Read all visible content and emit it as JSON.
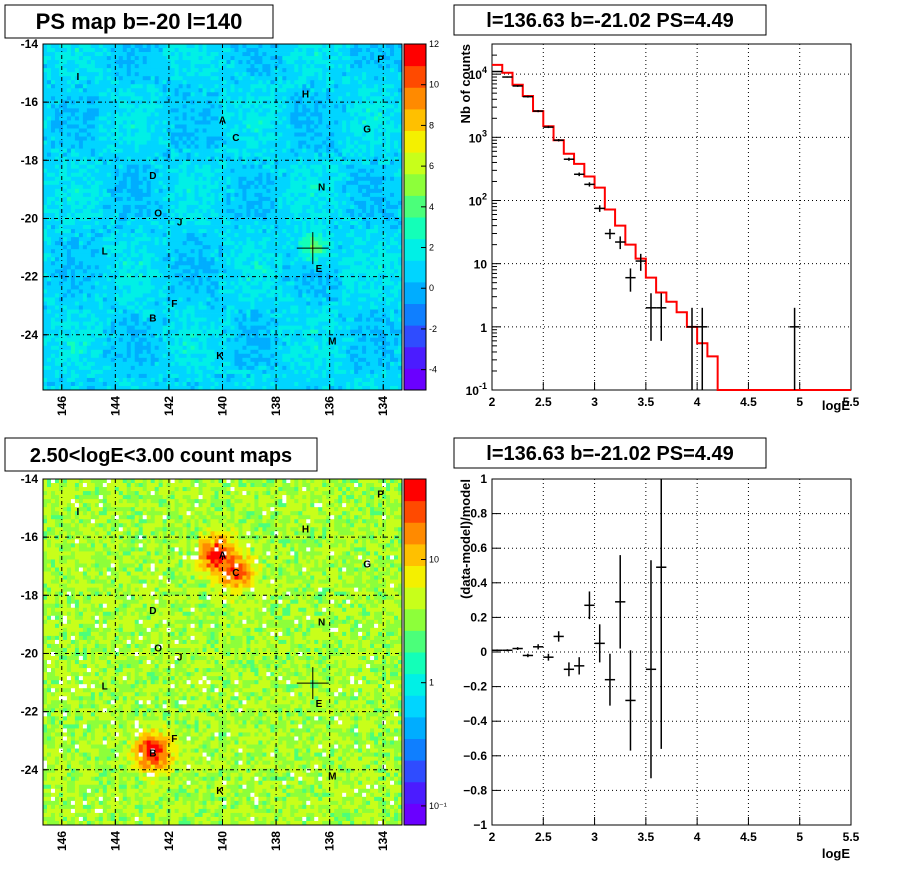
{
  "chart_data": [
    {
      "type": "heatmap",
      "title": "PS map b=-20 l=140",
      "x_ticks": [
        "146",
        "144",
        "142",
        "140",
        "138",
        "136",
        "134"
      ],
      "y_ticks": [
        "-14",
        "-16",
        "-18",
        "-20",
        "-22",
        "-24"
      ],
      "xlim": [
        146.7,
        133.3
      ],
      "ylim": [
        -25.9,
        -14
      ],
      "colorbar": {
        "scale": "linear",
        "range": [
          -5,
          12
        ],
        "ticks": [
          "12",
          "10",
          "8",
          "6",
          "4",
          "2",
          "0",
          "-2",
          "-4"
        ]
      },
      "background_level": 1,
      "sources": [
        {
          "label": "A",
          "l": 140.0,
          "b": -16.6
        },
        {
          "label": "B",
          "l": 142.6,
          "b": -23.4
        },
        {
          "label": "C",
          "l": 139.5,
          "b": -17.2
        },
        {
          "label": "D",
          "l": 142.6,
          "b": -18.5
        },
        {
          "label": "E",
          "l": 136.4,
          "b": -21.7
        },
        {
          "label": "F",
          "l": 141.8,
          "b": -22.9
        },
        {
          "label": "G",
          "l": 134.6,
          "b": -16.9
        },
        {
          "label": "H",
          "l": 136.9,
          "b": -15.7
        },
        {
          "label": "I",
          "l": 145.4,
          "b": -15.1
        },
        {
          "label": "J",
          "l": 141.6,
          "b": -20.1
        },
        {
          "label": "K",
          "l": 140.1,
          "b": -24.7
        },
        {
          "label": "L",
          "l": 144.4,
          "b": -21.1
        },
        {
          "label": "M",
          "l": 135.9,
          "b": -24.2
        },
        {
          "label": "N",
          "l": 136.3,
          "b": -18.9
        },
        {
          "label": "O",
          "l": 142.4,
          "b": -19.8
        },
        {
          "label": "P",
          "l": 134.1,
          "b": -14.5
        }
      ],
      "marker": {
        "l": 136.63,
        "b": -21.02
      },
      "hotspots": [
        {
          "l": 136.6,
          "b": -21.0,
          "level": 4
        }
      ]
    },
    {
      "type": "line",
      "title": "l=136.63 b=-21.02 PS=4.49",
      "xlabel": "logE",
      "ylabel": "Nb of counts",
      "yscale": "log",
      "xlim": [
        2,
        5.5
      ],
      "ylim": [
        0.1,
        30000
      ],
      "x_ticks": [
        "2",
        "2.5",
        "3",
        "3.5",
        "4",
        "4.5",
        "5",
        "5.5"
      ],
      "y_ticks": [
        {
          "v": 10000,
          "t": "10",
          "sup": "4"
        },
        {
          "v": 1000,
          "t": "10",
          "sup": "3"
        },
        {
          "v": 100,
          "t": "10",
          "sup": "2"
        },
        {
          "v": 10,
          "t": "10",
          "sup": ""
        },
        {
          "v": 1,
          "t": "1",
          "sup": ""
        },
        {
          "v": 0.1,
          "t": "10",
          "sup": "-1"
        }
      ],
      "grid": true,
      "series": [
        {
          "kind": "model_histogram",
          "color": "#ff0000",
          "edges": [
            2.0,
            2.1,
            2.2,
            2.3,
            2.4,
            2.5,
            2.6,
            2.7,
            2.8,
            2.9,
            3.0,
            3.1,
            3.2,
            3.3,
            3.4,
            3.5,
            3.6,
            3.7,
            3.8,
            3.9,
            4.0,
            4.1,
            4.2,
            4.3,
            4.4,
            4.5,
            4.6,
            4.7,
            4.8,
            4.9,
            5.0,
            5.1,
            5.2,
            5.3,
            5.4,
            5.5
          ],
          "values": [
            14000,
            10500,
            6800,
            4500,
            2600,
            1500,
            900,
            550,
            380,
            240,
            160,
            72,
            40,
            20,
            12,
            6,
            3.5,
            2.5,
            1.7,
            1,
            0.55,
            0.34,
            0.1,
            0.1,
            0.1,
            0.1,
            0.1,
            0.1,
            0.1,
            0.1,
            0.1,
            0.1,
            0.1,
            0.1,
            0.1
          ]
        },
        {
          "kind": "data_points",
          "color": "#000000",
          "points": [
            {
              "x": 2.05,
              "y": 11000,
              "lo": 10800,
              "hi": 11200
            },
            {
              "x": 2.15,
              "y": 9000,
              "lo": 8800,
              "hi": 9200
            },
            {
              "x": 2.25,
              "y": 6500,
              "lo": 6300,
              "hi": 6700
            },
            {
              "x": 2.35,
              "y": 4400,
              "lo": 4250,
              "hi": 4550
            },
            {
              "x": 2.45,
              "y": 2600,
              "lo": 2500,
              "hi": 2700
            },
            {
              "x": 2.55,
              "y": 1450,
              "lo": 1400,
              "hi": 1520
            },
            {
              "x": 2.65,
              "y": 900,
              "lo": 860,
              "hi": 940
            },
            {
              "x": 2.75,
              "y": 450,
              "lo": 425,
              "hi": 475
            },
            {
              "x": 2.85,
              "y": 260,
              "lo": 243,
              "hi": 277
            },
            {
              "x": 2.95,
              "y": 180,
              "lo": 166,
              "hi": 194
            },
            {
              "x": 3.05,
              "y": 75,
              "lo": 66,
              "hi": 84
            },
            {
              "x": 3.15,
              "y": 30,
              "lo": 24.5,
              "hi": 35.5
            },
            {
              "x": 3.25,
              "y": 22,
              "lo": 17,
              "hi": 27
            },
            {
              "x": 3.35,
              "y": 6,
              "lo": 3.6,
              "hi": 8.4
            },
            {
              "x": 3.45,
              "y": 11,
              "lo": 7.7,
              "hi": 14.3
            },
            {
              "x": 3.55,
              "y": 2,
              "lo": 0.6,
              "hi": 3.4
            },
            {
              "x": 3.65,
              "y": 2,
              "lo": 0.6,
              "hi": 3.4
            },
            {
              "x": 3.95,
              "y": 1,
              "lo": 0.1,
              "hi": 2
            },
            {
              "x": 4.05,
              "y": 1,
              "lo": 0.1,
              "hi": 2
            },
            {
              "x": 4.95,
              "y": 1,
              "lo": 0.1,
              "hi": 2
            }
          ]
        }
      ]
    },
    {
      "type": "heatmap",
      "title": "2.50<logE<3.00 count maps",
      "x_ticks": [
        "146",
        "144",
        "142",
        "140",
        "138",
        "136",
        "134"
      ],
      "y_ticks": [
        "-14",
        "-16",
        "-18",
        "-20",
        "-22",
        "-24"
      ],
      "xlim": [
        146.7,
        133.3
      ],
      "ylim": [
        -25.9,
        -14
      ],
      "colorbar": {
        "scale": "log",
        "range": [
          0.07,
          45
        ],
        "ticks": [
          "10",
          "1",
          "10⁻¹"
        ]
      },
      "background_level": 4,
      "sources": [
        {
          "label": "A",
          "l": 140.0,
          "b": -16.6
        },
        {
          "label": "B",
          "l": 142.6,
          "b": -23.4
        },
        {
          "label": "C",
          "l": 139.5,
          "b": -17.2
        },
        {
          "label": "D",
          "l": 142.6,
          "b": -18.5
        },
        {
          "label": "E",
          "l": 136.4,
          "b": -21.7
        },
        {
          "label": "F",
          "l": 141.8,
          "b": -22.9
        },
        {
          "label": "G",
          "l": 134.6,
          "b": -16.9
        },
        {
          "label": "H",
          "l": 136.9,
          "b": -15.7
        },
        {
          "label": "I",
          "l": 145.4,
          "b": -15.1
        },
        {
          "label": "J",
          "l": 141.6,
          "b": -20.1
        },
        {
          "label": "K",
          "l": 140.1,
          "b": -24.7
        },
        {
          "label": "L",
          "l": 144.4,
          "b": -21.1
        },
        {
          "label": "M",
          "l": 135.9,
          "b": -24.2
        },
        {
          "label": "N",
          "l": 136.3,
          "b": -18.9
        },
        {
          "label": "O",
          "l": 142.4,
          "b": -19.8
        },
        {
          "label": "P",
          "l": 134.1,
          "b": -14.5
        }
      ],
      "marker": {
        "l": 136.63,
        "b": -21.02
      },
      "hotspots": [
        {
          "l": 140.2,
          "b": -16.6,
          "level": 30
        },
        {
          "l": 139.5,
          "b": -17.2,
          "level": 20
        },
        {
          "l": 142.6,
          "b": -23.4,
          "level": 30
        }
      ]
    },
    {
      "type": "scatter",
      "title": "l=136.63 b=-21.02 PS=4.49",
      "xlabel": "logE",
      "ylabel": "(data-model)/model",
      "xlim": [
        2,
        5.5
      ],
      "ylim": [
        -1,
        1
      ],
      "x_ticks": [
        "2",
        "2.5",
        "3",
        "3.5",
        "4",
        "4.5",
        "5",
        "5.5"
      ],
      "y_ticks": [
        "1",
        "0.8",
        "0.6",
        "0.4",
        "0.2",
        "0",
        "−0.2",
        "−0.4",
        "−0.6",
        "−0.8",
        "−1"
      ],
      "grid": true,
      "series": [
        {
          "kind": "residuals",
          "color": "#000000",
          "points": [
            {
              "x": 2.05,
              "y": 0.01,
              "err": 0.005
            },
            {
              "x": 2.15,
              "y": 0.01,
              "err": 0.006
            },
            {
              "x": 2.25,
              "y": 0.02,
              "err": 0.008
            },
            {
              "x": 2.35,
              "y": -0.02,
              "err": 0.01
            },
            {
              "x": 2.45,
              "y": 0.03,
              "err": 0.015
            },
            {
              "x": 2.55,
              "y": -0.03,
              "err": 0.02
            },
            {
              "x": 2.65,
              "y": 0.09,
              "err": 0.03
            },
            {
              "x": 2.75,
              "y": -0.1,
              "err": 0.04
            },
            {
              "x": 2.85,
              "y": -0.08,
              "err": 0.05
            },
            {
              "x": 2.95,
              "y": 0.27,
              "err": 0.08
            },
            {
              "x": 3.05,
              "y": 0.05,
              "err": 0.11
            },
            {
              "x": 3.15,
              "y": -0.16,
              "err": 0.15
            },
            {
              "x": 3.25,
              "y": 0.29,
              "err": 0.27
            },
            {
              "x": 3.35,
              "y": -0.28,
              "err": 0.29
            },
            {
              "x": 3.55,
              "y": -0.1,
              "err": 0.63
            },
            {
              "x": 3.65,
              "y": 0.49,
              "err": 1.05
            }
          ]
        }
      ]
    }
  ]
}
